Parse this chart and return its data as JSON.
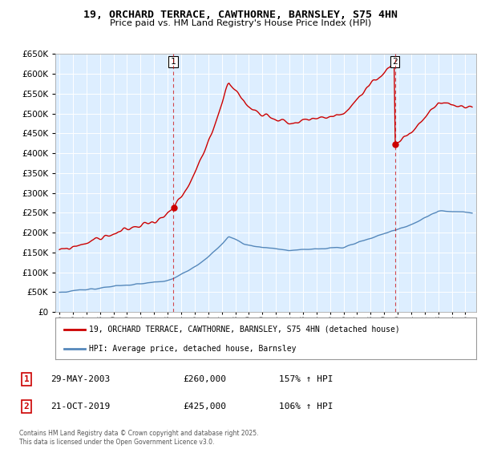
{
  "title": "19, ORCHARD TERRACE, CAWTHORNE, BARNSLEY, S75 4HN",
  "subtitle": "Price paid vs. HM Land Registry's House Price Index (HPI)",
  "legend_line1": "19, ORCHARD TERRACE, CAWTHORNE, BARNSLEY, S75 4HN (detached house)",
  "legend_line2": "HPI: Average price, detached house, Barnsley",
  "transaction1_date": "29-MAY-2003",
  "transaction1_price": "£260,000",
  "transaction1_hpi": "157% ↑ HPI",
  "transaction2_date": "21-OCT-2019",
  "transaction2_price": "£425,000",
  "transaction2_hpi": "106% ↑ HPI",
  "footnote": "Contains HM Land Registry data © Crown copyright and database right 2025.\nThis data is licensed under the Open Government Licence v3.0.",
  "red_color": "#cc0000",
  "blue_color": "#5588bb",
  "plot_bg_color": "#ddeeff",
  "ylim": [
    0,
    650000
  ],
  "xstart": 1994.7,
  "xend": 2025.8,
  "t1": 2003.41,
  "p1": 260000,
  "t2": 2019.8,
  "p2": 425000
}
